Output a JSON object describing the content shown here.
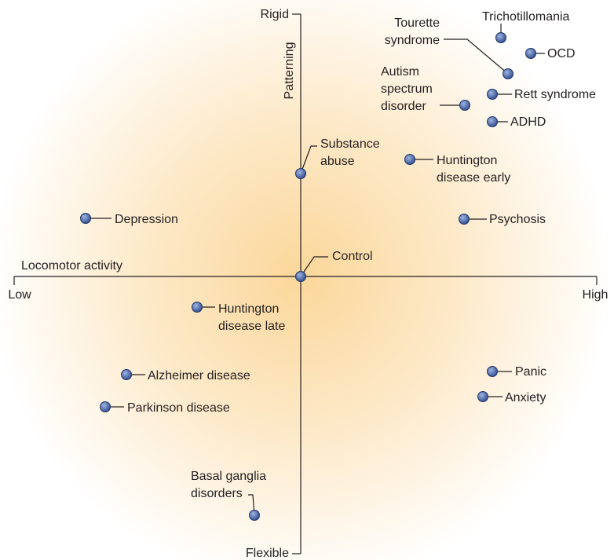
{
  "axes": {
    "y_top": "Rigid",
    "y_bottom": "Flexible",
    "y_title": "Patterning",
    "x_title": "Locomotor activity",
    "x_left": "Low",
    "x_right": "High"
  },
  "nodes": [
    {
      "label": [
        "Trichotillomania"
      ]
    },
    {
      "label": [
        "Tourette",
        "syndrome"
      ]
    },
    {
      "label": [
        "OCD"
      ]
    },
    {
      "label": [
        "Autism",
        "spectrum",
        "disorder"
      ]
    },
    {
      "label": [
        "Rett syndrome"
      ]
    },
    {
      "label": [
        "ADHD"
      ]
    },
    {
      "label": [
        "Substance",
        "abuse"
      ]
    },
    {
      "label": [
        "Huntington",
        "disease early"
      ]
    },
    {
      "label": [
        "Depression"
      ]
    },
    {
      "label": [
        "Psychosis"
      ]
    },
    {
      "label": [
        "Control"
      ]
    },
    {
      "label": [
        "Huntington",
        "disease late"
      ]
    },
    {
      "label": [
        "Alzheimer disease"
      ]
    },
    {
      "label": [
        "Parkinson disease"
      ]
    },
    {
      "label": [
        "Panic"
      ]
    },
    {
      "label": [
        "Anxiety"
      ]
    },
    {
      "label": [
        "Basal ganglia",
        "disorders"
      ]
    }
  ]
}
